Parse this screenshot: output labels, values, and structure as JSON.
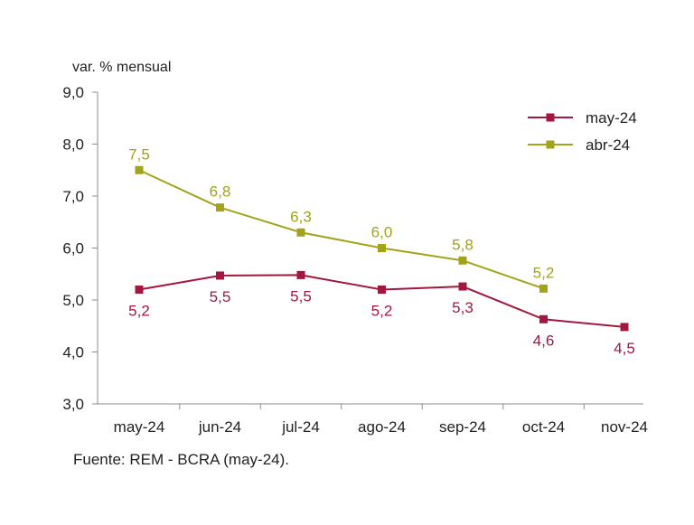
{
  "chart_data": {
    "type": "line",
    "ylabel": "var. % mensual",
    "source": "Fuente: REM - BCRA (may-24).",
    "categories": [
      "may-24",
      "jun-24",
      "jul-24",
      "ago-24",
      "sep-24",
      "oct-24",
      "nov-24"
    ],
    "ylim": [
      3.0,
      9.0
    ],
    "yticks": [
      "3,0",
      "4,0",
      "5,0",
      "6,0",
      "7,0",
      "8,0",
      "9,0"
    ],
    "ytick_values": [
      3,
      4,
      5,
      6,
      7,
      8,
      9
    ],
    "legend_position": "top-right",
    "grid": false,
    "series": [
      {
        "name": "may-24",
        "color": "#a3173f",
        "values": [
          5.2,
          5.47,
          5.48,
          5.2,
          5.26,
          4.63,
          4.48
        ],
        "labels": [
          "5,2",
          "5,5",
          "5,5",
          "5,2",
          "5,3",
          "4,6",
          "4,5"
        ],
        "label_side": "below"
      },
      {
        "name": "abr-24",
        "color": "#a3a21b",
        "values": [
          7.5,
          6.78,
          6.3,
          6.0,
          5.76,
          5.22,
          null
        ],
        "labels": [
          "7,5",
          "6,8",
          "6,3",
          "6,0",
          "5,8",
          "5,2",
          null
        ],
        "label_side": "above"
      }
    ]
  }
}
